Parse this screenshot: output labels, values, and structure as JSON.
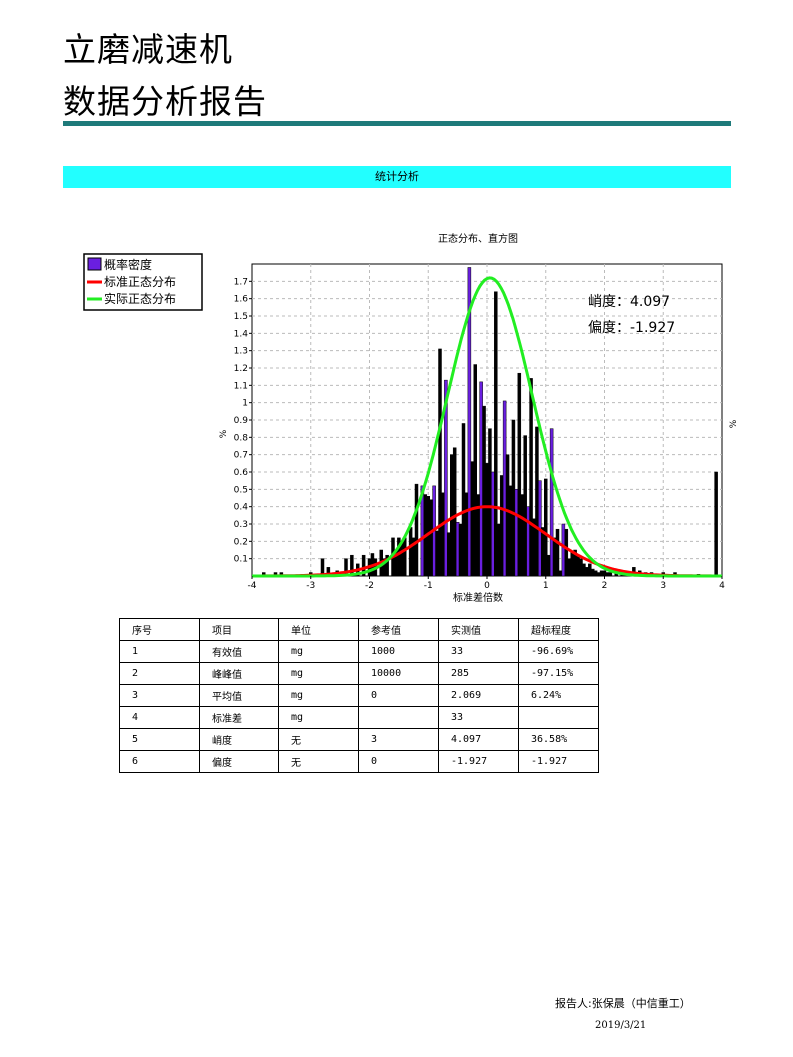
{
  "title": {
    "line1": "立磨减速机",
    "line2": "数据分析报告"
  },
  "section": {
    "label": "统计分析"
  },
  "colors": {
    "rule": "#1e7a7a",
    "section_bar": "#22ffff",
    "bars": "#6a1fe0",
    "standard_curve": "#ff0000",
    "actual_curve": "#22ee22"
  },
  "chart_data": {
    "type": "bar",
    "title": "正态分布、直方图",
    "xlabel": "标准差倍数",
    "ylabel": "%",
    "ylabel_right": "%",
    "xlim": [
      -4,
      4
    ],
    "ylim": [
      0,
      1.8
    ],
    "xticks": [
      "-4",
      "-3",
      "-2",
      "-1",
      "0",
      "1",
      "2",
      "3",
      "4"
    ],
    "yticks": [
      "0.1",
      "0.2",
      "0.3",
      "0.4",
      "0.5",
      "0.6",
      "0.7",
      "0.8",
      "0.9",
      "1",
      "1.1",
      "1.2",
      "1.3",
      "1.4",
      "1.5",
      "1.6",
      "1.7"
    ],
    "grid": true,
    "legend": [
      "概率密度",
      "标准正态分布",
      "实际正态分布"
    ],
    "legend_position": "top-left",
    "annotations": [
      {
        "label": "峭度：",
        "value": "4.097"
      },
      {
        "label": "偏度：",
        "value": "-1.927"
      }
    ],
    "series": [
      {
        "name": "概率密度",
        "type": "bar",
        "x": [
          -3.8,
          -3.6,
          -3.5,
          -3.0,
          -2.8,
          -2.7,
          -2.55,
          -2.4,
          -2.3,
          -2.2,
          -2.1,
          -2.0,
          -1.95,
          -1.9,
          -1.8,
          -1.75,
          -1.7,
          -1.6,
          -1.55,
          -1.5,
          -1.45,
          -1.4,
          -1.3,
          -1.25,
          -1.2,
          -1.1,
          -1.05,
          -1.0,
          -0.95,
          -0.9,
          -0.85,
          -0.8,
          -0.75,
          -0.7,
          -0.65,
          -0.6,
          -0.55,
          -0.5,
          -0.45,
          -0.4,
          -0.35,
          -0.3,
          -0.25,
          -0.2,
          -0.15,
          -0.1,
          -0.05,
          0.0,
          0.05,
          0.1,
          0.15,
          0.2,
          0.25,
          0.3,
          0.35,
          0.4,
          0.45,
          0.5,
          0.55,
          0.6,
          0.65,
          0.7,
          0.75,
          0.8,
          0.85,
          0.9,
          0.95,
          1.0,
          1.05,
          1.1,
          1.15,
          1.2,
          1.25,
          1.3,
          1.35,
          1.4,
          1.45,
          1.5,
          1.55,
          1.6,
          1.65,
          1.7,
          1.75,
          1.8,
          1.85,
          1.9,
          1.95,
          2.0,
          2.05,
          2.1,
          2.2,
          2.3,
          2.4,
          2.5,
          2.6,
          2.7,
          2.8,
          3.0,
          3.2,
          3.6,
          3.9
        ],
        "values": [
          0.02,
          0.02,
          0.02,
          0.02,
          0.1,
          0.05,
          0.03,
          0.1,
          0.12,
          0.07,
          0.12,
          0.1,
          0.13,
          0.1,
          0.15,
          0.1,
          0.12,
          0.22,
          0.15,
          0.22,
          0.2,
          0.22,
          0.28,
          0.22,
          0.53,
          0.52,
          0.47,
          0.46,
          0.44,
          0.52,
          0.26,
          1.31,
          0.48,
          1.13,
          0.25,
          0.7,
          0.74,
          0.31,
          0.3,
          0.88,
          0.48,
          1.78,
          0.66,
          1.22,
          0.47,
          1.12,
          0.98,
          0.65,
          0.85,
          0.6,
          1.64,
          0.3,
          0.58,
          1.01,
          0.7,
          0.52,
          0.9,
          0.5,
          1.17,
          0.47,
          0.81,
          0.4,
          1.14,
          0.33,
          0.86,
          0.55,
          0.28,
          0.56,
          0.12,
          0.85,
          0.22,
          0.27,
          0.03,
          0.3,
          0.27,
          0.1,
          0.14,
          0.15,
          0.12,
          0.1,
          0.07,
          0.05,
          0.07,
          0.04,
          0.03,
          0.02,
          0.03,
          0.03,
          0.02,
          0.02,
          0.02,
          0.03,
          0.02,
          0.05,
          0.03,
          0.02,
          0.02,
          0.02,
          0.02,
          0.01,
          0.6
        ]
      },
      {
        "name": "标准正态分布",
        "type": "line",
        "mean": 0.0,
        "sd": 1.0,
        "peak": 0.4
      },
      {
        "name": "实际正态分布",
        "type": "line",
        "mean": 0.05,
        "sd": 0.72,
        "peak": 1.72
      }
    ]
  },
  "table": {
    "headers": [
      "序号",
      "项目",
      "单位",
      "参考值",
      "实测值",
      "超标程度"
    ],
    "rows": [
      [
        "1",
        "有效值",
        "mg",
        "1000",
        "33",
        "-96.69%"
      ],
      [
        "2",
        "峰峰值",
        "mg",
        "10000",
        "285",
        "-97.15%"
      ],
      [
        "3",
        "平均值",
        "mg",
        "0",
        "2.069",
        "6.24%"
      ],
      [
        "4",
        "标准差",
        "mg",
        "",
        "33",
        ""
      ],
      [
        "5",
        "峭度",
        "无",
        "3",
        "4.097",
        "36.58%"
      ],
      [
        "6",
        "偏度",
        "无",
        "0",
        "-1.927",
        "-1.927"
      ]
    ]
  },
  "footer": {
    "reporter": "报告人:张保晨（中信重工）",
    "date": "2019/3/21"
  }
}
